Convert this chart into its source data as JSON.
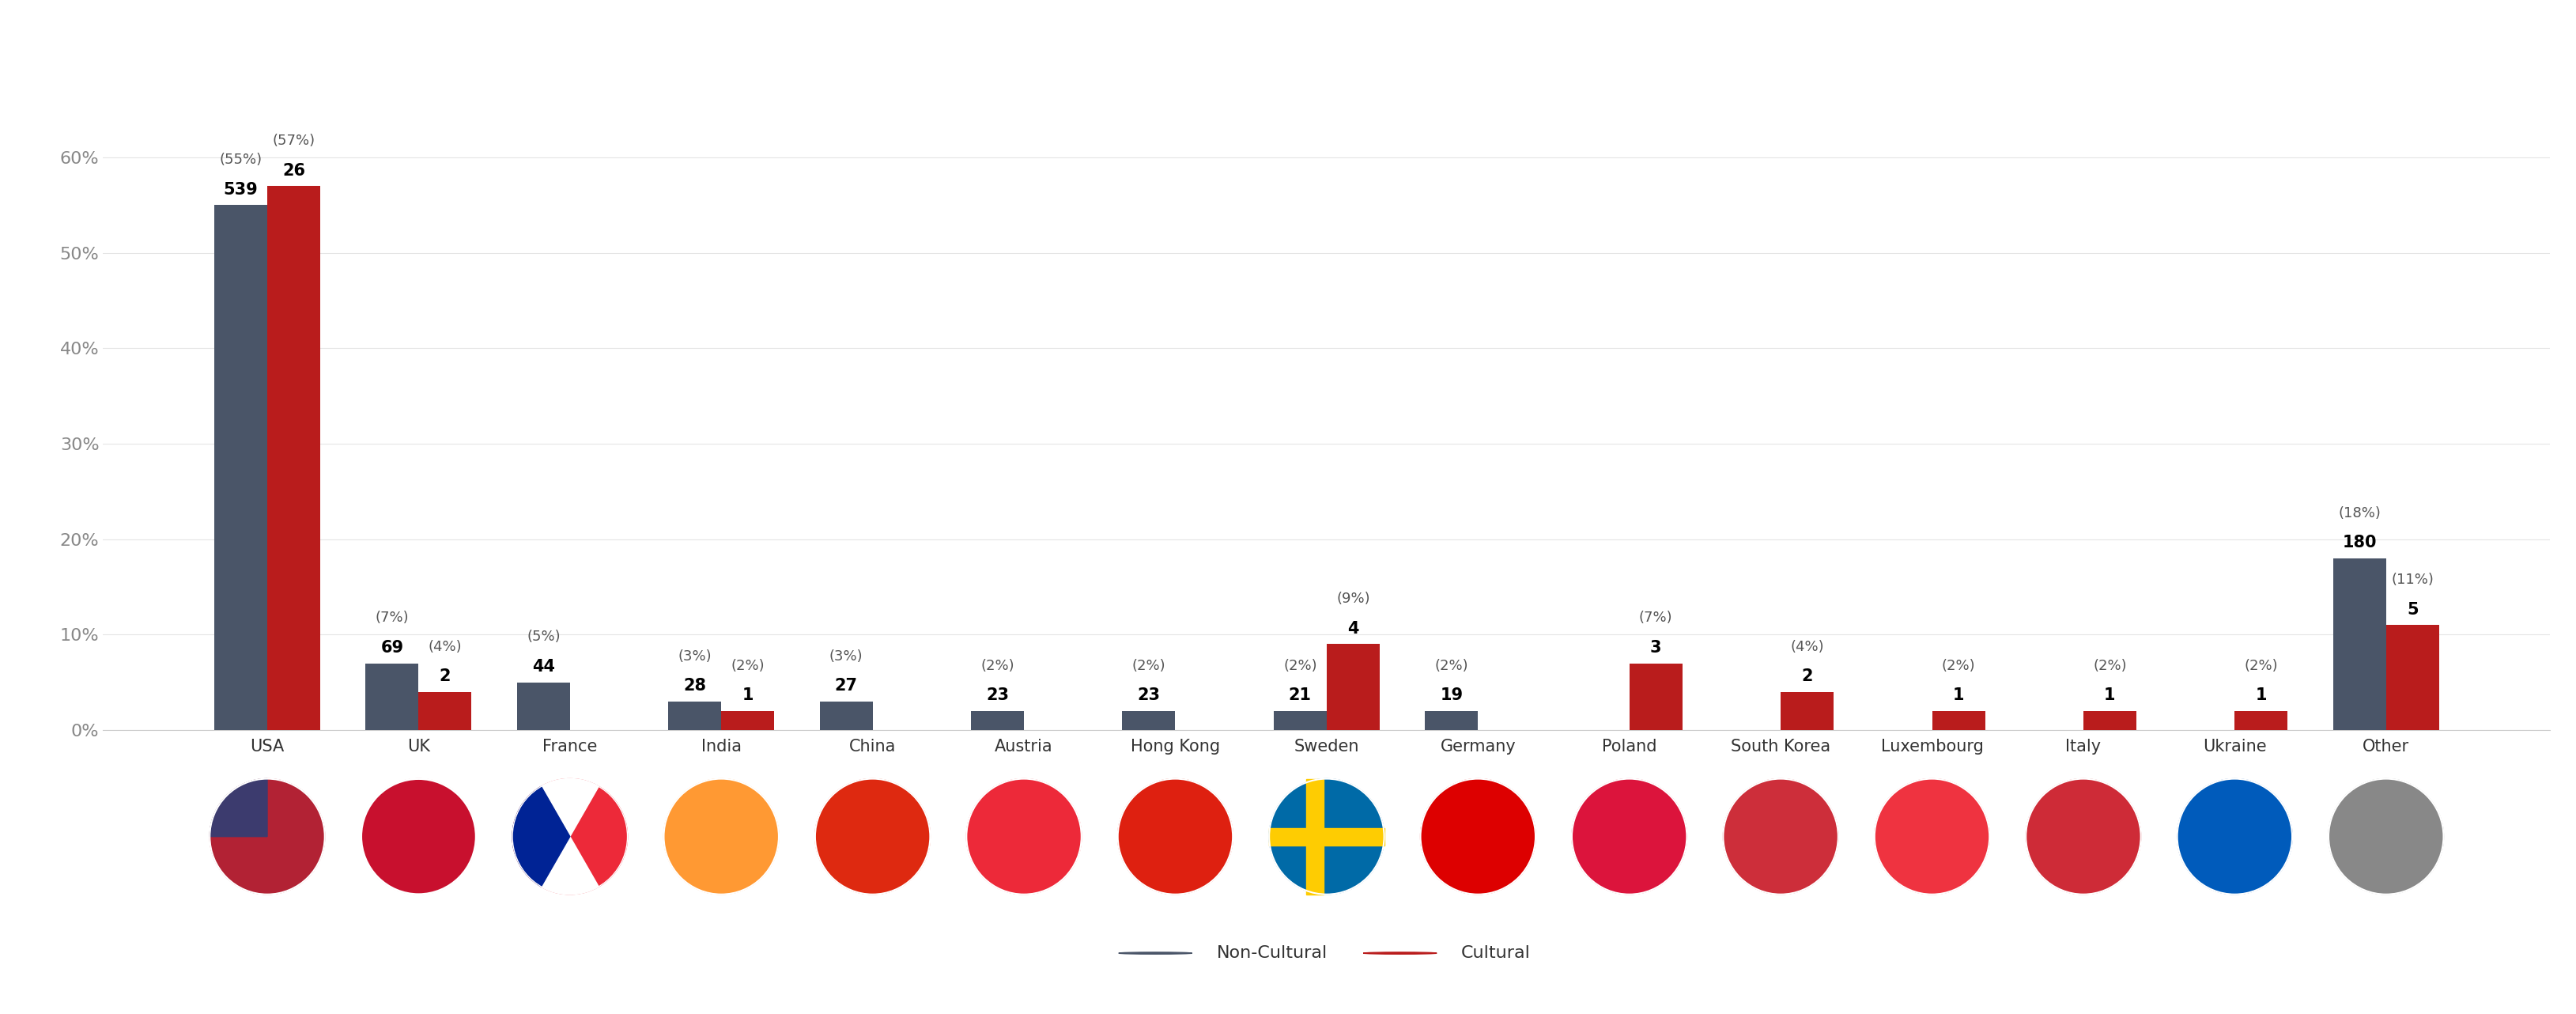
{
  "categories": [
    "USA",
    "UK",
    "France",
    "India",
    "China",
    "Austria",
    "Hong Kong",
    "Sweden",
    "Germany",
    "Poland",
    "South Korea",
    "Luxembourg",
    "Italy",
    "Ukraine",
    "Other"
  ],
  "non_cultural_values": [
    55,
    7,
    5,
    3,
    3,
    2,
    2,
    2,
    2,
    0,
    0,
    0,
    0,
    0,
    18
  ],
  "cultural_values": [
    57,
    4,
    0,
    2,
    0,
    0,
    0,
    9,
    0,
    7,
    4,
    2,
    2,
    2,
    11
  ],
  "non_cultural_counts": [
    539,
    69,
    44,
    28,
    27,
    23,
    23,
    21,
    19,
    0,
    0,
    0,
    0,
    0,
    180
  ],
  "cultural_counts": [
    26,
    2,
    0,
    1,
    0,
    0,
    0,
    4,
    0,
    3,
    2,
    1,
    1,
    1,
    5
  ],
  "non_cultural_pcts": [
    "(55%)",
    "(7%)",
    "(5%)",
    "(3%)",
    "(3%)",
    "(2%)",
    "(2%)",
    "(2%)",
    "(2%)",
    "",
    "",
    "",
    "",
    "",
    "(18%)"
  ],
  "cultural_pcts": [
    "(57%)",
    "(4%)",
    "",
    "(2%)",
    "",
    "",
    "",
    "(9%)",
    "",
    "(7%)",
    "(4%)",
    "(2%)",
    "(2%)",
    "(2%)",
    "(11%)"
  ],
  "non_cultural_color": "#4a5568",
  "cultural_color": "#b91c1c",
  "background_color": "#ffffff",
  "yticks": [
    0,
    10,
    20,
    30,
    40,
    50,
    60
  ],
  "ytick_labels": [
    "0%",
    "10%",
    "20%",
    "30%",
    "40%",
    "50%",
    "60%"
  ],
  "bar_width": 0.35,
  "legend_labels": [
    "Non-Cultural",
    "Cultural"
  ],
  "flag_colors": [
    [
      "#B22234",
      "#FFFFFF",
      "#3C3B6E"
    ],
    [
      "#012169",
      "#FFFFFF",
      "#C8102E"
    ],
    [
      "#002395",
      "#FFFFFF",
      "#ED2939"
    ],
    [
      "#FF9933",
      "#FFFFFF",
      "#138808"
    ],
    [
      "#DE2910",
      "#FFDE00",
      "#DE2910"
    ],
    [
      "#ED2939",
      "#FFFFFF",
      "#ED2939"
    ],
    [
      "#DE2010",
      "#FFFFFF",
      "#FFFF00"
    ],
    [
      "#006AA7",
      "#FECC02",
      "#006AA7"
    ],
    [
      "#000000",
      "#DD0000",
      "#FFCE00"
    ],
    [
      "#DC143C",
      "#FFFFFF",
      "#DC143C"
    ],
    [
      "#003478",
      "#FFFFFF",
      "#CD2E3A"
    ],
    [
      "#EF3340",
      "#FFFFFF",
      "#00A3E0"
    ],
    [
      "#009246",
      "#FFFFFF",
      "#CE2B37"
    ],
    [
      "#005BBB",
      "#FFD500",
      "#005BBB"
    ],
    [
      "#888888",
      "#888888",
      "#888888"
    ]
  ]
}
